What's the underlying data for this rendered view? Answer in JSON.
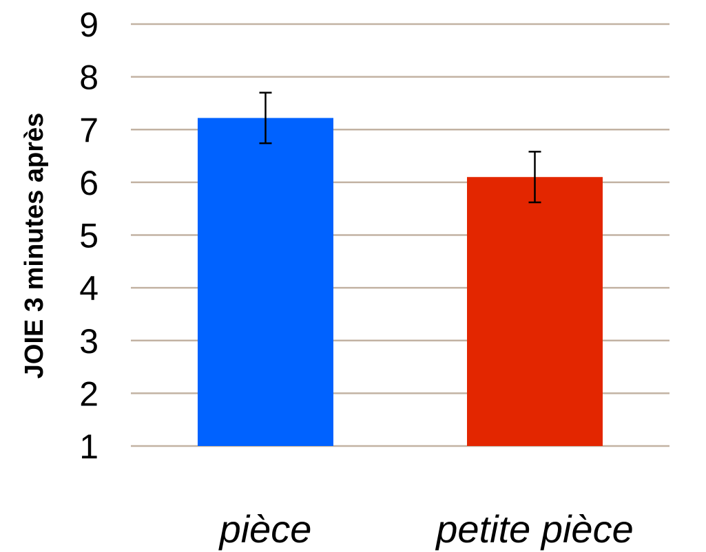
{
  "chart_data": {
    "type": "bar",
    "title": "",
    "xlabel": "",
    "ylabel": "JOIE 3 minutes après",
    "categories": [
      "pièce",
      "petite pièce"
    ],
    "values": [
      7.22,
      6.1
    ],
    "error_bars": [
      {
        "low": 6.74,
        "high": 7.7
      },
      {
        "low": 5.62,
        "high": 6.58
      }
    ],
    "ylim": [
      1,
      9
    ],
    "yticks": [
      "1",
      "2",
      "3",
      "4",
      "5",
      "6",
      "7",
      "8",
      "9"
    ],
    "grid": true,
    "colors": {
      "bars": [
        "#0062FF",
        "#E32600"
      ],
      "grid": "#C2B2A2",
      "error_bar": "#000000"
    }
  }
}
